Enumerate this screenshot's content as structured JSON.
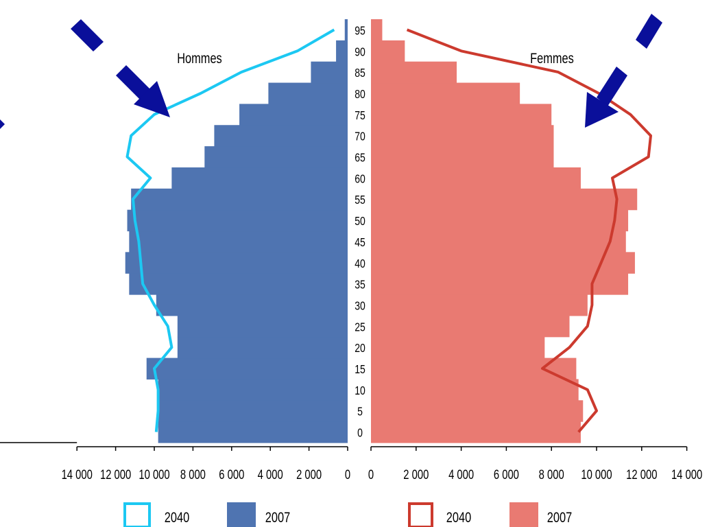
{
  "chart_data": {
    "type": "bar",
    "subtype": "population-pyramid",
    "ages": [
      0,
      5,
      10,
      15,
      20,
      25,
      30,
      35,
      40,
      45,
      50,
      55,
      60,
      65,
      70,
      75,
      80,
      85,
      90,
      95
    ],
    "age_tick_labels": [
      "0",
      "5",
      "10",
      "15",
      "20",
      "25",
      "30",
      "35",
      "40",
      "45",
      "50",
      "55",
      "60",
      "65",
      "70",
      "75",
      "80",
      "85",
      "90",
      "95"
    ],
    "men_label": "Hommes",
    "women_label": "Femmes",
    "x_tick_labels": [
      "0",
      "2 000",
      "4 000",
      "6 000",
      "8 000",
      "10 000",
      "12 000",
      "14 000"
    ],
    "x_ticks": [
      0,
      2000,
      4000,
      6000,
      8000,
      10000,
      12000,
      14000
    ],
    "xlim": [
      0,
      14000
    ],
    "series": [
      {
        "name": "2007",
        "sex": "Hommes",
        "kind": "bars",
        "color": "#4f74b1",
        "values": [
          9800,
          9850,
          9800,
          10400,
          8800,
          8800,
          9900,
          11300,
          11500,
          11300,
          11400,
          11200,
          9100,
          7400,
          6900,
          5600,
          4100,
          1900,
          600,
          150
        ]
      },
      {
        "name": "2040",
        "sex": "Hommes",
        "kind": "line",
        "color": "#1cc8f2",
        "values": [
          9900,
          9800,
          9800,
          10000,
          9100,
          9300,
          10000,
          10600,
          10700,
          10800,
          11000,
          11100,
          10200,
          11400,
          11200,
          10000,
          7600,
          5500,
          2600,
          700
        ]
      },
      {
        "name": "2007",
        "sex": "Femmes",
        "kind": "bars",
        "color": "#e97a72",
        "values": [
          9300,
          9400,
          9200,
          9100,
          7700,
          8800,
          9600,
          11400,
          11700,
          11300,
          11400,
          11800,
          9300,
          8100,
          8100,
          8000,
          6600,
          3800,
          1500,
          500
        ]
      },
      {
        "name": "2040",
        "sex": "Femmes",
        "kind": "line",
        "color": "#cc3a2e",
        "values": [
          9200,
          10000,
          9600,
          7600,
          8800,
          9600,
          9800,
          9800,
          10200,
          10600,
          10800,
          10900,
          10700,
          12300,
          12400,
          11500,
          10100,
          8300,
          4000,
          1600
        ]
      }
    ],
    "legend": [
      {
        "label": "2040",
        "style": "outline",
        "color": "#1cc8f2"
      },
      {
        "label": "2007",
        "style": "filled",
        "color": "#4f74b1"
      },
      {
        "label": "2040",
        "style": "outline",
        "color": "#cc3a2e"
      },
      {
        "label": "2007",
        "style": "filled",
        "color": "#e97a72"
      }
    ],
    "legend_placement": "bottom",
    "grid": false,
    "annotations": {
      "arrow_color": "#0a0f9a",
      "count": 4
    }
  }
}
